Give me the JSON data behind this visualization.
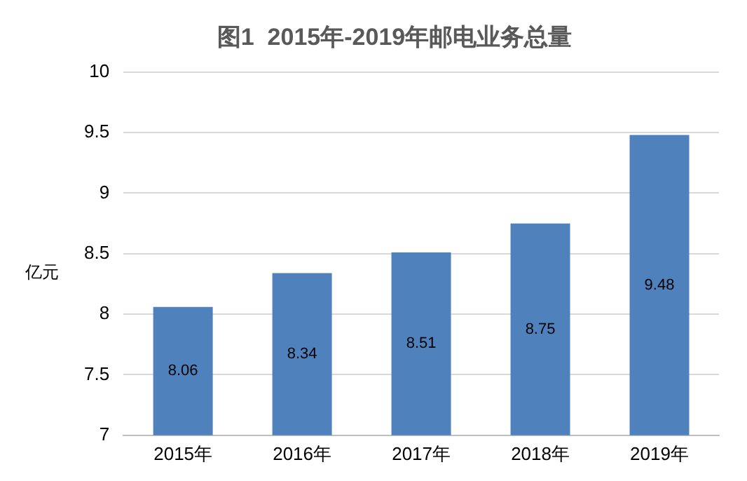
{
  "chart_data": {
    "type": "bar",
    "title": "图1  2015年-2019年邮电业务总量",
    "ylabel": "亿元",
    "categories": [
      "2015年",
      "2016年",
      "2017年",
      "2018年",
      "2019年"
    ],
    "values": [
      8.06,
      8.34,
      8.51,
      8.75,
      9.48
    ],
    "color": "#4f81bd",
    "ylim": [
      7,
      10
    ],
    "yticks": [
      7,
      7.5,
      8,
      8.5,
      9,
      9.5,
      10
    ],
    "grid": "y",
    "data_labels": true
  }
}
